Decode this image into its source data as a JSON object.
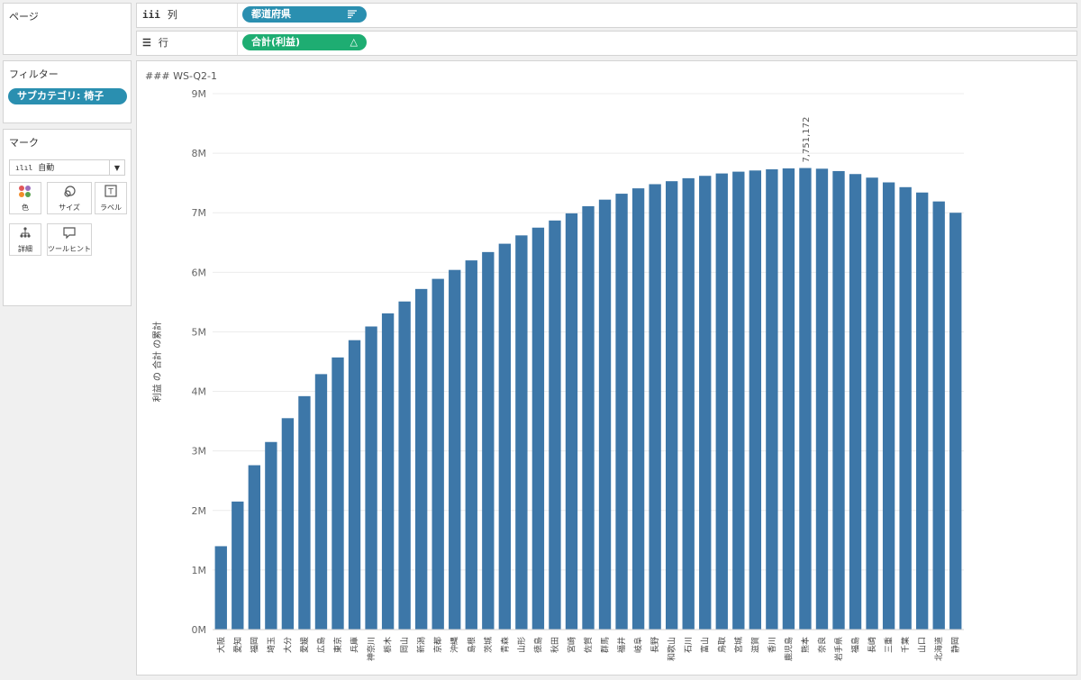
{
  "pages_panel": {
    "title": "ページ"
  },
  "filters_panel": {
    "title": "フィルター",
    "pill": "サブカテゴリ: 椅子"
  },
  "columns_shelf": {
    "label": "列",
    "glyph": "iii",
    "pill": "都道府県"
  },
  "rows_shelf": {
    "label": "行",
    "glyph": "☰",
    "pill": "合計(利益)",
    "pill_icon": "△"
  },
  "marks_panel": {
    "title": "マーク",
    "type_selected": "自動",
    "buttons": [
      {
        "label": "色",
        "icon": "color-dots-icon"
      },
      {
        "label": "サイズ",
        "icon": "size-icon"
      },
      {
        "label": "ラベル",
        "icon": "label-icon"
      },
      {
        "label": "詳細",
        "icon": "detail-icon"
      },
      {
        "label": "ツールヒント",
        "icon": "tooltip-icon"
      }
    ]
  },
  "sheet_title": "### WS-Q2-1",
  "colors": {
    "bar": "#3d77a8",
    "pill_blue": "#2a8fb0",
    "pill_green": "#1ead72"
  },
  "chart_data": {
    "type": "bar",
    "ylabel": "利益 の 合計 の累計",
    "y_ticks": [
      "0M",
      "1M",
      "2M",
      "3M",
      "4M",
      "5M",
      "6M",
      "7M",
      "8M",
      "9M"
    ],
    "ylim": [
      0,
      9000000
    ],
    "grid": true,
    "annotation": {
      "category": "熊本",
      "text": "7,751,172"
    },
    "categories": [
      "大阪",
      "愛知",
      "福岡",
      "埼玉",
      "大分",
      "愛媛",
      "広島",
      "東京",
      "兵庫",
      "神奈川",
      "栃木",
      "岡山",
      "新潟",
      "京都",
      "沖縄",
      "島根",
      "茨城",
      "青森",
      "山形",
      "徳島",
      "秋田",
      "宮崎",
      "佐賀",
      "群馬",
      "福井",
      "岐阜",
      "長野",
      "和歌山",
      "石川",
      "富山",
      "鳥取",
      "宮城",
      "滋賀",
      "香川",
      "鹿児島",
      "熊本",
      "奈良",
      "岩手県",
      "福島",
      "長崎",
      "三重",
      "千葉",
      "山口",
      "北海道",
      "静岡"
    ],
    "values": [
      1400000,
      2150000,
      2760000,
      3150000,
      3550000,
      3920000,
      4290000,
      4570000,
      4860000,
      5090000,
      5310000,
      5510000,
      5720000,
      5890000,
      6040000,
      6200000,
      6340000,
      6480000,
      6620000,
      6750000,
      6870000,
      6990000,
      7110000,
      7220000,
      7320000,
      7410000,
      7480000,
      7530000,
      7580000,
      7620000,
      7660000,
      7690000,
      7710000,
      7730000,
      7745000,
      7751172,
      7740000,
      7700000,
      7650000,
      7590000,
      7510000,
      7430000,
      7340000,
      7190000,
      7000000
    ]
  }
}
